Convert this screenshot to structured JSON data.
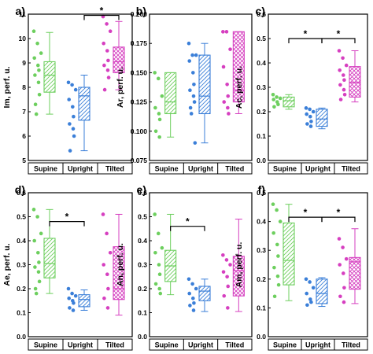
{
  "colors": {
    "Supine": "#6dcf5e",
    "Upright": "#3b7fd8",
    "Tilted": "#d63fc0"
  },
  "chart_data": [
    {
      "type": "box",
      "letter": "a)",
      "ylabel": "Im, perf. u.",
      "categories": [
        "Supine",
        "Upright",
        "Tilted"
      ],
      "ylim": [
        5,
        11
      ],
      "yticks": [
        "5",
        "6",
        "7",
        "8",
        "9",
        "10",
        "11"
      ],
      "boxes": [
        {
          "name": "Supine",
          "q1": 7.8,
          "median": 8.5,
          "q3": 9.05,
          "whisker_low": 6.9,
          "whisker_high": 10.25,
          "points": [
            10.3,
            9.8,
            9.4,
            9.2,
            8.9,
            8.7,
            8.5,
            8.2,
            7.7,
            7.3,
            6.9
          ]
        },
        {
          "name": "Upright",
          "q1": 6.65,
          "median": 7.65,
          "q3": 8.0,
          "whisker_low": 5.4,
          "whisker_high": 8.5,
          "points": [
            8.2,
            8.1,
            7.9,
            7.5,
            7.2,
            6.8,
            6.5,
            6.3,
            6.0,
            5.4
          ]
        },
        {
          "name": "Tilted",
          "q1": 8.6,
          "median": 9.05,
          "q3": 9.65,
          "whisker_low": 7.9,
          "whisker_high": 10.7,
          "points": [
            10.9,
            10.6,
            10.3,
            9.8,
            9.5,
            9.1,
            8.9,
            8.7,
            8.4,
            7.9
          ]
        }
      ],
      "significance": [
        {
          "from": "Upright",
          "to": "Tilted",
          "y": 10.95,
          "label": "*"
        }
      ]
    },
    {
      "type": "box",
      "letter": "b)",
      "ylabel": "Ar, perf. u.",
      "categories": [
        "Supine",
        "Upright",
        "Tilted"
      ],
      "ylim": [
        0.075,
        0.2
      ],
      "yticks": [
        "0.075",
        "0.100",
        "0.125",
        "0.150",
        "0.175",
        "0.200"
      ],
      "boxes": [
        {
          "name": "Supine",
          "q1": 0.115,
          "median": 0.125,
          "q3": 0.15,
          "whisker_low": 0.095,
          "whisker_high": 0.15,
          "points": [
            0.15,
            0.145,
            0.13,
            0.12,
            0.115,
            0.11,
            0.1,
            0.095
          ]
        },
        {
          "name": "Upright",
          "q1": 0.115,
          "median": 0.13,
          "q3": 0.165,
          "whisker_low": 0.09,
          "whisker_high": 0.175,
          "points": [
            0.175,
            0.165,
            0.165,
            0.16,
            0.15,
            0.14,
            0.135,
            0.13,
            0.125,
            0.12,
            0.115,
            0.09
          ]
        },
        {
          "name": "Tilted",
          "q1": 0.125,
          "median": 0.135,
          "q3": 0.185,
          "whisker_low": 0.115,
          "whisker_high": 0.185,
          "points": [
            0.185,
            0.185,
            0.17,
            0.155,
            0.14,
            0.13,
            0.125,
            0.12,
            0.115
          ]
        }
      ],
      "significance": []
    },
    {
      "type": "box",
      "letter": "c)",
      "ylabel": "Ac, perf. u.",
      "categories": [
        "Supine",
        "Upright",
        "Tilted"
      ],
      "ylim": [
        0.0,
        0.6
      ],
      "yticks": [
        "0.0",
        "0.1",
        "0.2",
        "0.3",
        "0.4",
        "0.5",
        "0.6"
      ],
      "boxes": [
        {
          "name": "Supine",
          "q1": 0.22,
          "median": 0.245,
          "q3": 0.26,
          "whisker_low": 0.21,
          "whisker_high": 0.27,
          "points": [
            0.27,
            0.26,
            0.255,
            0.25,
            0.24,
            0.23,
            0.22
          ]
        },
        {
          "name": "Upright",
          "q1": 0.14,
          "median": 0.17,
          "q3": 0.21,
          "whisker_low": 0.13,
          "whisker_high": 0.215,
          "points": [
            0.215,
            0.21,
            0.2,
            0.19,
            0.18,
            0.16,
            0.15,
            0.14
          ]
        },
        {
          "name": "Tilted",
          "q1": 0.26,
          "median": 0.32,
          "q3": 0.385,
          "whisker_low": 0.24,
          "whisker_high": 0.45,
          "points": [
            0.45,
            0.42,
            0.39,
            0.37,
            0.35,
            0.33,
            0.31,
            0.29,
            0.27,
            0.25
          ]
        }
      ],
      "significance": [
        {
          "from": "Supine",
          "to": "Upright",
          "y": 0.5,
          "label": "*"
        },
        {
          "from": "Upright",
          "to": "Tilted",
          "y": 0.5,
          "label": "*"
        }
      ]
    },
    {
      "type": "box",
      "letter": "d)",
      "ylabel": "Ae, perf. u.",
      "categories": [
        "Supine",
        "Upright",
        "Tilted"
      ],
      "ylim": [
        0.0,
        0.6
      ],
      "yticks": [
        "0.0",
        "0.1",
        "0.2",
        "0.3",
        "0.4",
        "0.5",
        "0.6"
      ],
      "boxes": [
        {
          "name": "Supine",
          "q1": 0.245,
          "median": 0.305,
          "q3": 0.41,
          "whisker_low": 0.18,
          "whisker_high": 0.53,
          "points": [
            0.53,
            0.5,
            0.43,
            0.4,
            0.35,
            0.31,
            0.29,
            0.27,
            0.23,
            0.2,
            0.18
          ]
        },
        {
          "name": "Upright",
          "q1": 0.125,
          "median": 0.155,
          "q3": 0.175,
          "whisker_low": 0.11,
          "whisker_high": 0.195,
          "points": [
            0.2,
            0.18,
            0.17,
            0.16,
            0.15,
            0.14,
            0.12,
            0.11
          ]
        },
        {
          "name": "Tilted",
          "q1": 0.155,
          "median": 0.2,
          "q3": 0.375,
          "whisker_low": 0.09,
          "whisker_high": 0.51,
          "points": [
            0.51,
            0.43,
            0.35,
            0.3,
            0.26,
            0.2,
            0.16,
            0.12
          ]
        }
      ],
      "significance": [
        {
          "from": "Supine",
          "to": "Upright",
          "y": 0.48,
          "label": "*"
        }
      ]
    },
    {
      "type": "box",
      "letter": "e)",
      "ylabel": "An, perf. u.",
      "categories": [
        "Supine",
        "Upright",
        "Tilted"
      ],
      "ylim": [
        0.0,
        0.6
      ],
      "yticks": [
        "0.0",
        "0.1",
        "0.2",
        "0.3",
        "0.4",
        "0.5",
        "0.6"
      ],
      "boxes": [
        {
          "name": "Supine",
          "q1": 0.23,
          "median": 0.295,
          "q3": 0.36,
          "whisker_low": 0.175,
          "whisker_high": 0.51,
          "points": [
            0.51,
            0.43,
            0.37,
            0.35,
            0.3,
            0.26,
            0.22,
            0.2,
            0.18
          ]
        },
        {
          "name": "Upright",
          "q1": 0.15,
          "median": 0.19,
          "q3": 0.21,
          "whisker_low": 0.105,
          "whisker_high": 0.24,
          "points": [
            0.24,
            0.22,
            0.2,
            0.18,
            0.16,
            0.14,
            0.13,
            0.11
          ]
        },
        {
          "name": "Tilted",
          "q1": 0.17,
          "median": 0.275,
          "q3": 0.335,
          "whisker_low": 0.105,
          "whisker_high": 0.49,
          "points": [
            0.34,
            0.32,
            0.3,
            0.27,
            0.25,
            0.21,
            0.17,
            0.12
          ]
        }
      ],
      "significance": [
        {
          "from": "Supine",
          "to": "Upright",
          "y": 0.46,
          "label": "*"
        }
      ]
    },
    {
      "type": "box",
      "letter": "f)",
      "ylabel": "Am, perf. u.",
      "categories": [
        "Supine",
        "Upright",
        "Tilted"
      ],
      "ylim": [
        0.0,
        0.5
      ],
      "yticks": [
        "0.0",
        "0.1",
        "0.2",
        "0.3",
        "0.4",
        "0.5"
      ],
      "boxes": [
        {
          "name": "Supine",
          "q1": 0.18,
          "median": 0.265,
          "q3": 0.395,
          "whisker_low": 0.125,
          "whisker_high": 0.46,
          "points": [
            0.46,
            0.44,
            0.4,
            0.36,
            0.32,
            0.28,
            0.24,
            0.21,
            0.18,
            0.14
          ]
        },
        {
          "name": "Upright",
          "q1": 0.115,
          "median": 0.15,
          "q3": 0.2,
          "whisker_low": 0.105,
          "whisker_high": 0.205,
          "points": [
            0.2,
            0.19,
            0.17,
            0.15,
            0.13,
            0.12,
            0.11
          ]
        },
        {
          "name": "Tilted",
          "q1": 0.165,
          "median": 0.26,
          "q3": 0.275,
          "whisker_low": 0.115,
          "whisker_high": 0.375,
          "points": [
            0.34,
            0.31,
            0.27,
            0.25,
            0.22,
            0.17,
            0.14,
            0.12
          ]
        }
      ],
      "significance": [
        {
          "from": "Supine",
          "to": "Upright",
          "y": 0.415,
          "label": "*"
        },
        {
          "from": "Upright",
          "to": "Tilted",
          "y": 0.415,
          "label": "*"
        }
      ]
    }
  ]
}
